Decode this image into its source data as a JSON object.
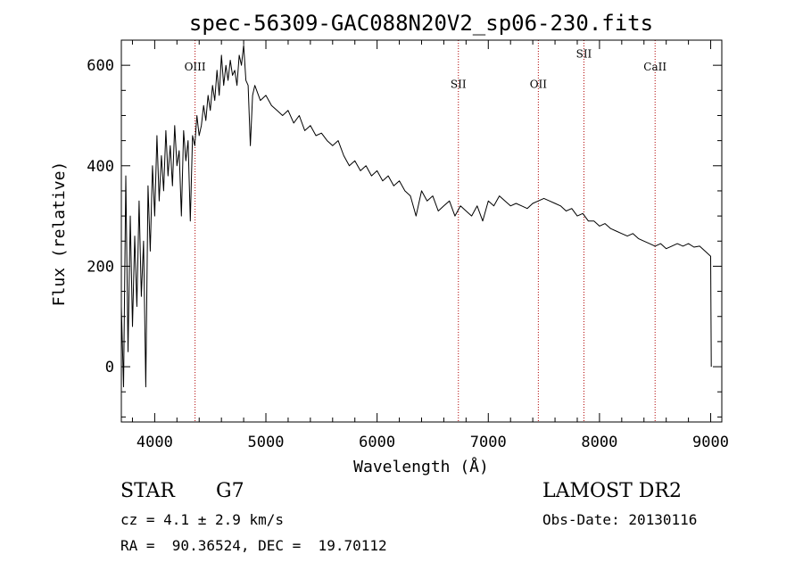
{
  "chart_data": {
    "type": "line",
    "title": "spec-56309-GAC088N20V2_sp06-230.fits",
    "xlabel": "Wavelength (Å)",
    "ylabel": "Flux (relative)",
    "xlim": [
      3700,
      9100
    ],
    "ylim": [
      -110,
      650
    ],
    "x_ticks": [
      4000,
      5000,
      6000,
      7000,
      8000,
      9000
    ],
    "y_ticks": [
      0,
      200,
      400,
      600
    ],
    "grid": false,
    "series": [
      {
        "color": "#000000",
        "points": [
          [
            3700,
            120
          ],
          [
            3720,
            -40
          ],
          [
            3740,
            380
          ],
          [
            3760,
            30
          ],
          [
            3780,
            300
          ],
          [
            3800,
            80
          ],
          [
            3820,
            260
          ],
          [
            3840,
            120
          ],
          [
            3860,
            330
          ],
          [
            3880,
            140
          ],
          [
            3900,
            250
          ],
          [
            3920,
            -40
          ],
          [
            3940,
            360
          ],
          [
            3960,
            230
          ],
          [
            3980,
            400
          ],
          [
            4000,
            300
          ],
          [
            4020,
            460
          ],
          [
            4040,
            330
          ],
          [
            4060,
            420
          ],
          [
            4080,
            350
          ],
          [
            4100,
            470
          ],
          [
            4120,
            380
          ],
          [
            4140,
            440
          ],
          [
            4160,
            360
          ],
          [
            4180,
            480
          ],
          [
            4200,
            400
          ],
          [
            4220,
            430
          ],
          [
            4240,
            300
          ],
          [
            4260,
            470
          ],
          [
            4280,
            410
          ],
          [
            4300,
            450
          ],
          [
            4320,
            290
          ],
          [
            4340,
            460
          ],
          [
            4360,
            440
          ],
          [
            4380,
            500
          ],
          [
            4400,
            460
          ],
          [
            4420,
            480
          ],
          [
            4440,
            520
          ],
          [
            4460,
            490
          ],
          [
            4480,
            540
          ],
          [
            4500,
            510
          ],
          [
            4520,
            560
          ],
          [
            4540,
            530
          ],
          [
            4560,
            590
          ],
          [
            4580,
            540
          ],
          [
            4600,
            620
          ],
          [
            4620,
            560
          ],
          [
            4640,
            600
          ],
          [
            4660,
            570
          ],
          [
            4680,
            610
          ],
          [
            4700,
            580
          ],
          [
            4720,
            590
          ],
          [
            4740,
            560
          ],
          [
            4760,
            620
          ],
          [
            4780,
            600
          ],
          [
            4800,
            640
          ],
          [
            4820,
            570
          ],
          [
            4840,
            560
          ],
          [
            4860,
            440
          ],
          [
            4880,
            540
          ],
          [
            4900,
            560
          ],
          [
            4950,
            530
          ],
          [
            5000,
            540
          ],
          [
            5050,
            520
          ],
          [
            5100,
            510
          ],
          [
            5150,
            500
          ],
          [
            5200,
            510
          ],
          [
            5250,
            485
          ],
          [
            5300,
            500
          ],
          [
            5350,
            470
          ],
          [
            5400,
            480
          ],
          [
            5450,
            460
          ],
          [
            5500,
            465
          ],
          [
            5550,
            450
          ],
          [
            5600,
            440
          ],
          [
            5650,
            450
          ],
          [
            5700,
            420
          ],
          [
            5750,
            400
          ],
          [
            5800,
            410
          ],
          [
            5850,
            390
          ],
          [
            5900,
            400
          ],
          [
            5950,
            380
          ],
          [
            6000,
            390
          ],
          [
            6050,
            370
          ],
          [
            6100,
            380
          ],
          [
            6150,
            360
          ],
          [
            6200,
            370
          ],
          [
            6250,
            350
          ],
          [
            6300,
            340
          ],
          [
            6350,
            300
          ],
          [
            6400,
            350
          ],
          [
            6450,
            330
          ],
          [
            6500,
            340
          ],
          [
            6550,
            310
          ],
          [
            6600,
            320
          ],
          [
            6650,
            330
          ],
          [
            6700,
            300
          ],
          [
            6750,
            320
          ],
          [
            6800,
            310
          ],
          [
            6850,
            300
          ],
          [
            6900,
            320
          ],
          [
            6950,
            290
          ],
          [
            7000,
            330
          ],
          [
            7050,
            320
          ],
          [
            7100,
            340
          ],
          [
            7150,
            330
          ],
          [
            7200,
            320
          ],
          [
            7250,
            325
          ],
          [
            7300,
            320
          ],
          [
            7350,
            315
          ],
          [
            7400,
            325
          ],
          [
            7450,
            330
          ],
          [
            7500,
            335
          ],
          [
            7550,
            330
          ],
          [
            7600,
            325
          ],
          [
            7650,
            320
          ],
          [
            7700,
            310
          ],
          [
            7750,
            315
          ],
          [
            7800,
            300
          ],
          [
            7850,
            305
          ],
          [
            7900,
            290
          ],
          [
            7950,
            290
          ],
          [
            8000,
            280
          ],
          [
            8050,
            285
          ],
          [
            8100,
            275
          ],
          [
            8150,
            270
          ],
          [
            8200,
            265
          ],
          [
            8250,
            260
          ],
          [
            8300,
            265
          ],
          [
            8350,
            255
          ],
          [
            8400,
            250
          ],
          [
            8450,
            245
          ],
          [
            8500,
            240
          ],
          [
            8550,
            245
          ],
          [
            8600,
            235
          ],
          [
            8650,
            240
          ],
          [
            8700,
            245
          ],
          [
            8750,
            240
          ],
          [
            8800,
            245
          ],
          [
            8850,
            238
          ],
          [
            8900,
            240
          ],
          [
            8950,
            230
          ],
          [
            9000,
            220
          ],
          [
            9005,
            0
          ]
        ]
      }
    ],
    "lines": [
      {
        "label": "OIII",
        "x": 4363,
        "label_y": 590
      },
      {
        "label": "SII",
        "x": 6731,
        "label_y": 555
      },
      {
        "label": "OII",
        "x": 7450,
        "label_y": 555
      },
      {
        "label": "SII",
        "x": 7860,
        "label_y": 615
      },
      {
        "label": "CaII",
        "x": 8500,
        "label_y": 590
      }
    ],
    "line_color": "#b00000"
  },
  "info": {
    "object_class": "STAR",
    "subclass": "G7",
    "cz": "cz = 4.1 ± 2.9 km/s",
    "coords": "RA =  90.36524, DEC =  19.70112",
    "survey": "LAMOST DR2",
    "obs_date": "Obs-Date: 20130116"
  }
}
